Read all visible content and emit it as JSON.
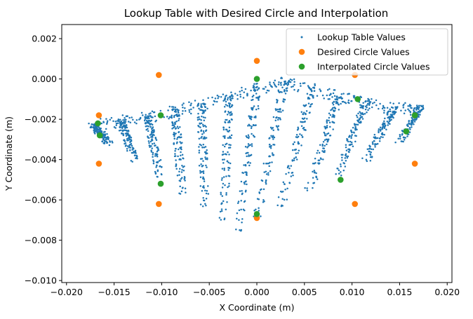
{
  "chart_data": {
    "type": "scatter",
    "title": "Lookup Table with Desired Circle and Interpolation",
    "xlabel": "X Coordinate (m)",
    "ylabel": "Y Coordinate (m)",
    "xlim": [
      -0.0205,
      0.0205
    ],
    "ylim": [
      -0.0101,
      0.0027
    ],
    "grid": false,
    "legend_position": "top-right",
    "xticks": [
      {
        "value": -0.02,
        "label": "−0.020"
      },
      {
        "value": -0.015,
        "label": "−0.015"
      },
      {
        "value": -0.01,
        "label": "−0.010"
      },
      {
        "value": -0.005,
        "label": "−0.005"
      },
      {
        "value": 0.0,
        "label": "0.000"
      },
      {
        "value": 0.005,
        "label": "0.005"
      },
      {
        "value": 0.01,
        "label": "0.010"
      },
      {
        "value": 0.015,
        "label": "0.015"
      },
      {
        "value": 0.02,
        "label": "0.020"
      }
    ],
    "yticks": [
      {
        "value": 0.002,
        "label": "0.002"
      },
      {
        "value": 0.0,
        "label": "0.000"
      },
      {
        "value": -0.002,
        "label": "−0.002"
      },
      {
        "value": -0.004,
        "label": "−0.004"
      },
      {
        "value": -0.006,
        "label": "−0.006"
      },
      {
        "value": -0.008,
        "label": "−0.008"
      },
      {
        "value": -0.01,
        "label": "−0.010"
      }
    ],
    "series": [
      {
        "name": "Lookup Table Values",
        "color": "#1f77b4",
        "marker": "small-dot",
        "lookup_grid": {
          "x_top": [
            -0.0172,
            -0.0143,
            -0.0115,
            -0.0086,
            -0.0058,
            -0.0029,
            0.0,
            0.0029,
            0.0058,
            0.0086,
            0.0115,
            0.0143,
            0.0172
          ],
          "y_top": [
            -0.0023,
            -0.0021,
            -0.0019,
            -0.0016,
            -0.0013,
            -0.0009,
            -0.0005,
            -0.0002,
            -0.0005,
            -0.0009,
            -0.0012,
            -0.0015,
            -0.0014
          ],
          "x_bottom": [
            -0.0155,
            -0.0128,
            -0.0102,
            -0.0078,
            -0.0055,
            -0.0035,
            -0.002,
            0.0,
            0.0025,
            0.0055,
            0.0085,
            0.0115,
            0.015
          ],
          "y_bottom": [
            -0.0032,
            -0.004,
            -0.0048,
            -0.0056,
            -0.0063,
            -0.0069,
            -0.0075,
            -0.0069,
            -0.0063,
            -0.0055,
            -0.0047,
            -0.004,
            -0.0031
          ],
          "rows": 16
        }
      },
      {
        "name": "Desired Circle Values",
        "color": "#ff7f0e",
        "marker": "circle",
        "points": [
          {
            "x": 0.0,
            "y": 0.0009
          },
          {
            "x": 0.0103,
            "y": 0.0002
          },
          {
            "x": 0.0166,
            "y": -0.0018
          },
          {
            "x": 0.0166,
            "y": -0.0042
          },
          {
            "x": 0.0103,
            "y": -0.0062
          },
          {
            "x": 0.0,
            "y": -0.0069
          },
          {
            "x": -0.0103,
            "y": -0.0062
          },
          {
            "x": -0.0166,
            "y": -0.0042
          },
          {
            "x": -0.0166,
            "y": -0.0018
          },
          {
            "x": -0.0103,
            "y": 0.0002
          }
        ]
      },
      {
        "name": "Interpolated Circle Values",
        "color": "#2ca02c",
        "marker": "circle",
        "points": [
          {
            "x": 0.0,
            "y": 0.0
          },
          {
            "x": 0.0106,
            "y": -0.001
          },
          {
            "x": 0.0166,
            "y": -0.0018
          },
          {
            "x": 0.0157,
            "y": -0.0026
          },
          {
            "x": 0.0088,
            "y": -0.005
          },
          {
            "x": 0.0,
            "y": -0.0067
          },
          {
            "x": -0.0101,
            "y": -0.0052
          },
          {
            "x": -0.0165,
            "y": -0.0028
          },
          {
            "x": -0.0167,
            "y": -0.0022
          },
          {
            "x": -0.0101,
            "y": -0.0018
          }
        ]
      }
    ]
  }
}
